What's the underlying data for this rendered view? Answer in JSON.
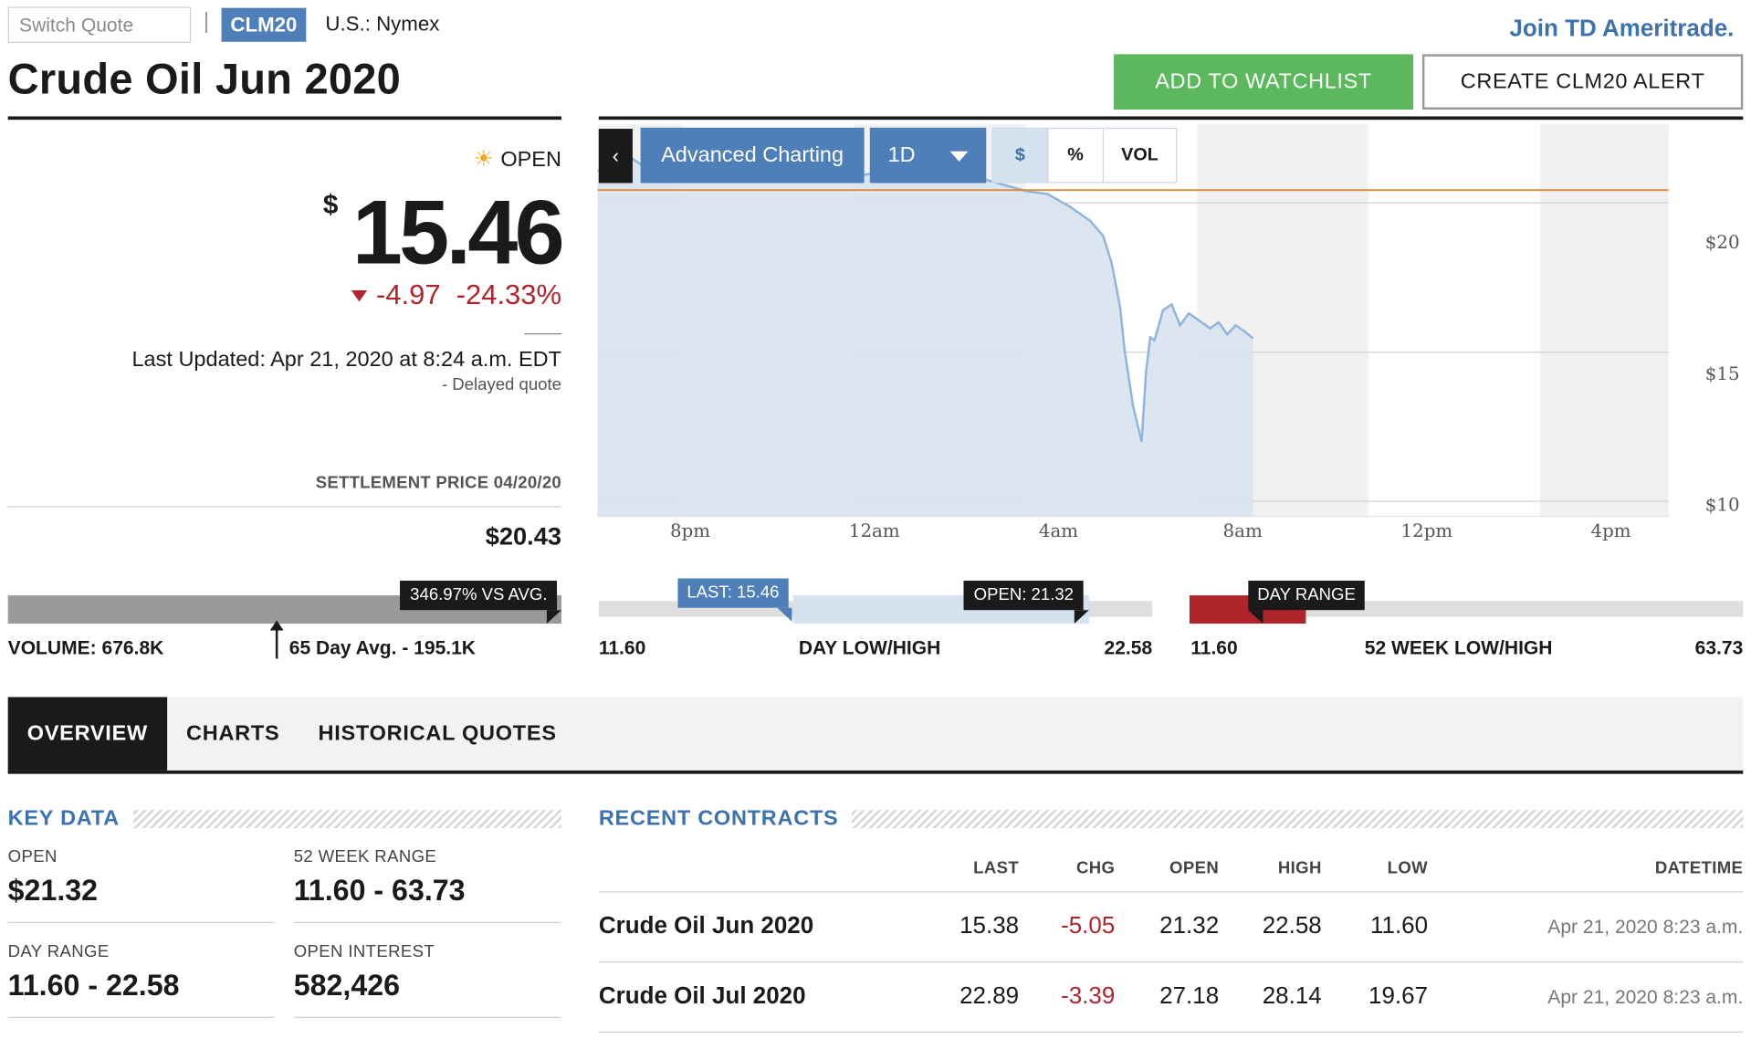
{
  "header": {
    "switch_quote_placeholder": "Switch Quote",
    "symbol": "CLM20",
    "exchange": "U.S.: Nymex",
    "title": "Crude Oil Jun 2020",
    "join_link": "Join TD Ameritrade.",
    "watchlist_button": "ADD TO WATCHLIST",
    "alert_button": "CREATE CLM20 ALERT"
  },
  "quote": {
    "status": "OPEN",
    "currency": "$",
    "price": "15.46",
    "change": "-4.97",
    "change_pct": "-24.33%",
    "last_updated": "Last Updated: Apr 21, 2020 at 8:24 a.m. EDT",
    "delayed": "-  Delayed quote",
    "settlement_label": "SETTLEMENT PRICE 04/20/20",
    "settlement_value": "$20.43"
  },
  "volume": {
    "vs_avg_badge": "346.97% VS AVG.",
    "volume_label": "VOLUME: 676.8K",
    "avg_label": "65 Day Avg. - 195.1K"
  },
  "chart_toolbar": {
    "collapse_glyph": "‹",
    "advanced_charting": "Advanced Charting",
    "range": "1D",
    "toggles": [
      "$",
      "%",
      "VOL"
    ],
    "active_toggle": "$"
  },
  "chart_data": {
    "type": "area",
    "x_ticks": [
      "8pm",
      "12am",
      "4am",
      "8am",
      "12pm",
      "4pm"
    ],
    "y_ticks": [
      "$20",
      "$15",
      "$10"
    ],
    "y_tick_values": [
      20,
      15,
      10
    ],
    "ylim": [
      9.5,
      21.5
    ],
    "x_domain_hours": [
      18,
      43
    ],
    "x_hours": [
      18.0,
      18.5,
      18.8,
      19.0,
      19.5,
      20.0,
      20.5,
      21.0,
      21.5,
      22.0,
      22.5,
      23.0,
      23.5,
      24.0,
      25.0,
      26.0,
      26.5,
      27.0,
      28.0,
      28.5,
      29.0,
      29.5,
      29.8,
      30.0,
      30.2,
      30.3,
      30.5,
      30.7,
      30.8,
      30.9,
      31.0,
      31.2,
      31.4,
      31.6,
      31.8,
      32.0,
      32.3,
      32.5,
      32.7,
      32.9,
      33.1,
      33.3
    ],
    "values": [
      21.1,
      21.0,
      21.5,
      21.3,
      21.2,
      21.1,
      21.3,
      21.2,
      21.6,
      21.4,
      21.2,
      21.1,
      21.0,
      20.9,
      21.1,
      21.0,
      21.1,
      20.8,
      20.4,
      20.3,
      19.9,
      19.4,
      18.9,
      18.0,
      16.5,
      15.1,
      13.2,
      12.0,
      14.3,
      15.5,
      15.4,
      16.4,
      16.6,
      15.9,
      16.3,
      16.1,
      15.8,
      16.0,
      15.6,
      15.9,
      15.7,
      15.46
    ],
    "reference_line": 20.43
  },
  "day_range": {
    "low": "11.60",
    "high": "22.58",
    "label": "DAY LOW/HIGH",
    "last_badge": "LAST: 15.46",
    "open_badge": "OPEN: 21.32",
    "last_value": 15.46,
    "open_value": 21.32
  },
  "week52": {
    "low": "11.60",
    "high": "63.73",
    "label": "52 WEEK LOW/HIGH",
    "badge": "DAY RANGE"
  },
  "tabs": [
    "OVERVIEW",
    "CHARTS",
    "HISTORICAL QUOTES"
  ],
  "key_data": {
    "title": "KEY DATA",
    "items": [
      {
        "label": "OPEN",
        "value": "$21.32"
      },
      {
        "label": "52 WEEK RANGE",
        "value": "11.60 - 63.73"
      },
      {
        "label": "DAY RANGE",
        "value": "11.60 - 22.58"
      },
      {
        "label": "OPEN INTEREST",
        "value": "582,426"
      }
    ]
  },
  "recent_contracts": {
    "title": "RECENT CONTRACTS",
    "columns": [
      "LAST",
      "CHG",
      "OPEN",
      "HIGH",
      "LOW",
      "DATETIME"
    ],
    "rows": [
      {
        "name": "Crude Oil Jun 2020",
        "last": "15.38",
        "chg": "-5.05",
        "open": "21.32",
        "high": "22.58",
        "low": "11.60",
        "datetime": "Apr 21, 2020 8:23 a.m."
      },
      {
        "name": "Crude Oil Jul 2020",
        "last": "22.89",
        "chg": "-3.39",
        "open": "27.18",
        "high": "28.14",
        "low": "19.67",
        "datetime": "Apr 21, 2020 8:23 a.m."
      }
    ]
  },
  "colors": {
    "accent_blue": "#4f7fb8",
    "positive_green": "#5cb85c",
    "negative_red": "#b0252c",
    "reference_orange": "#e08a3a"
  }
}
